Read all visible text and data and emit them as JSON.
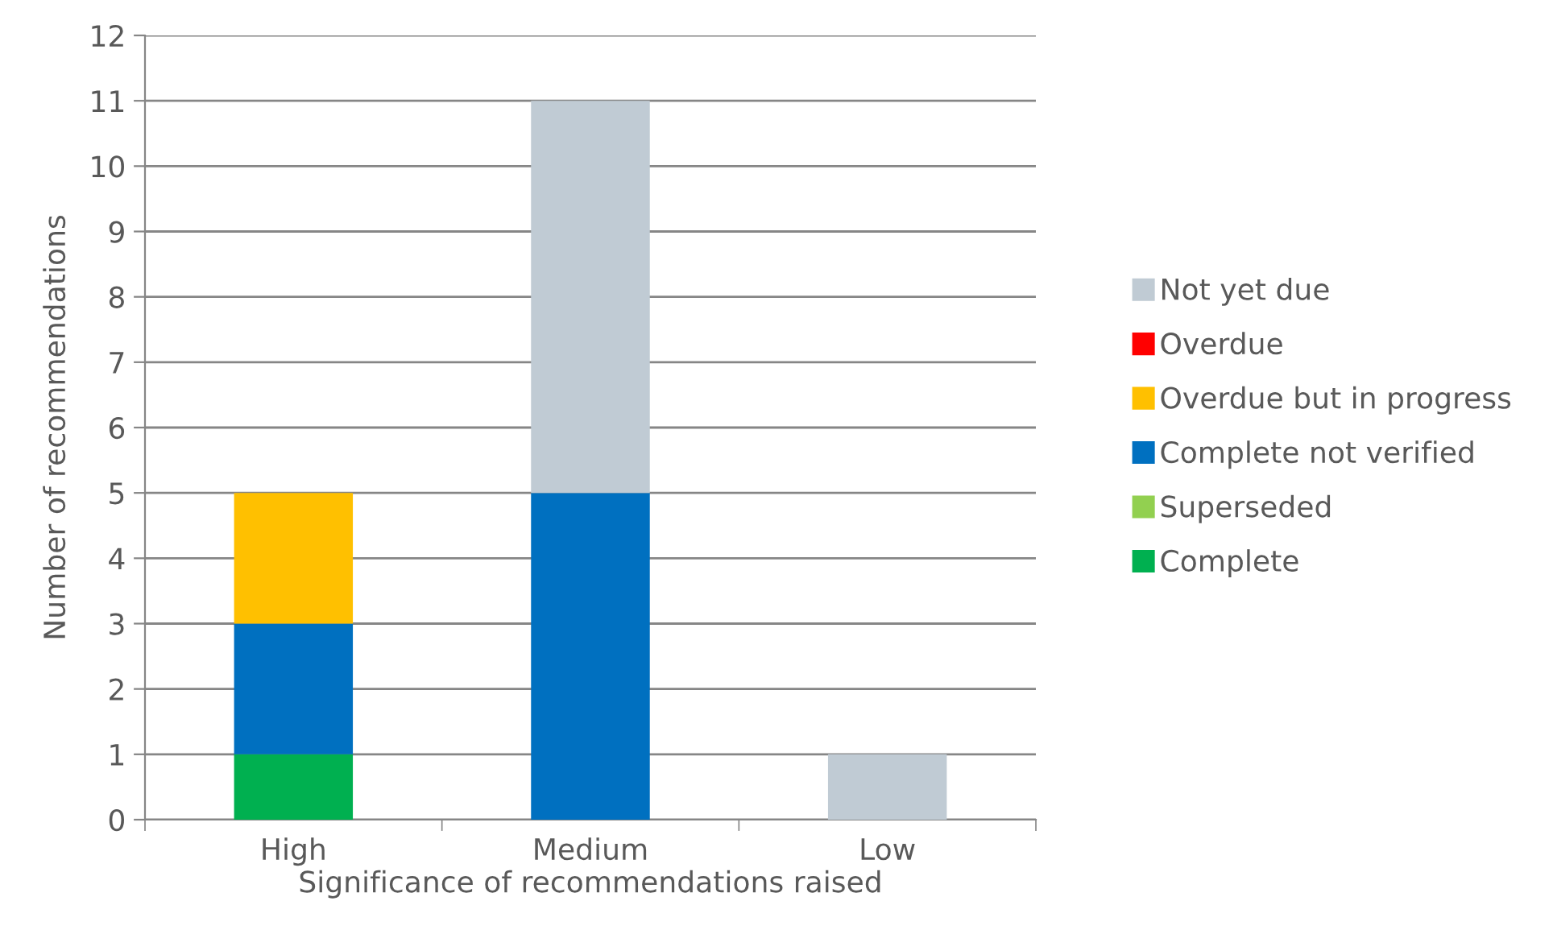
{
  "chart_data": {
    "type": "bar",
    "stacked": true,
    "xlabel": "Significance of recommendations raised",
    "ylabel": "Number of recommendations",
    "categories": [
      "High",
      "Medium",
      "Low"
    ],
    "series": [
      {
        "name": "Complete",
        "color": "#00b050",
        "values": [
          1,
          0,
          0
        ]
      },
      {
        "name": "Superseded",
        "color": "#92d050",
        "values": [
          0,
          0,
          0
        ]
      },
      {
        "name": "Complete not verified",
        "color": "#0070c0",
        "values": [
          2,
          5,
          0
        ]
      },
      {
        "name": "Overdue but in progress",
        "color": "#ffc000",
        "values": [
          2,
          0,
          0
        ]
      },
      {
        "name": "Overdue",
        "color": "#ff0000",
        "values": [
          0,
          0,
          0
        ]
      },
      {
        "name": "Not yet due",
        "color": "#c0cbd4",
        "values": [
          0,
          6,
          1
        ]
      }
    ],
    "ylim": [
      0,
      12
    ],
    "yticks": [
      0,
      1,
      2,
      3,
      4,
      5,
      6,
      7,
      8,
      9,
      10,
      11,
      12
    ],
    "grid": "y",
    "legend": "right"
  }
}
